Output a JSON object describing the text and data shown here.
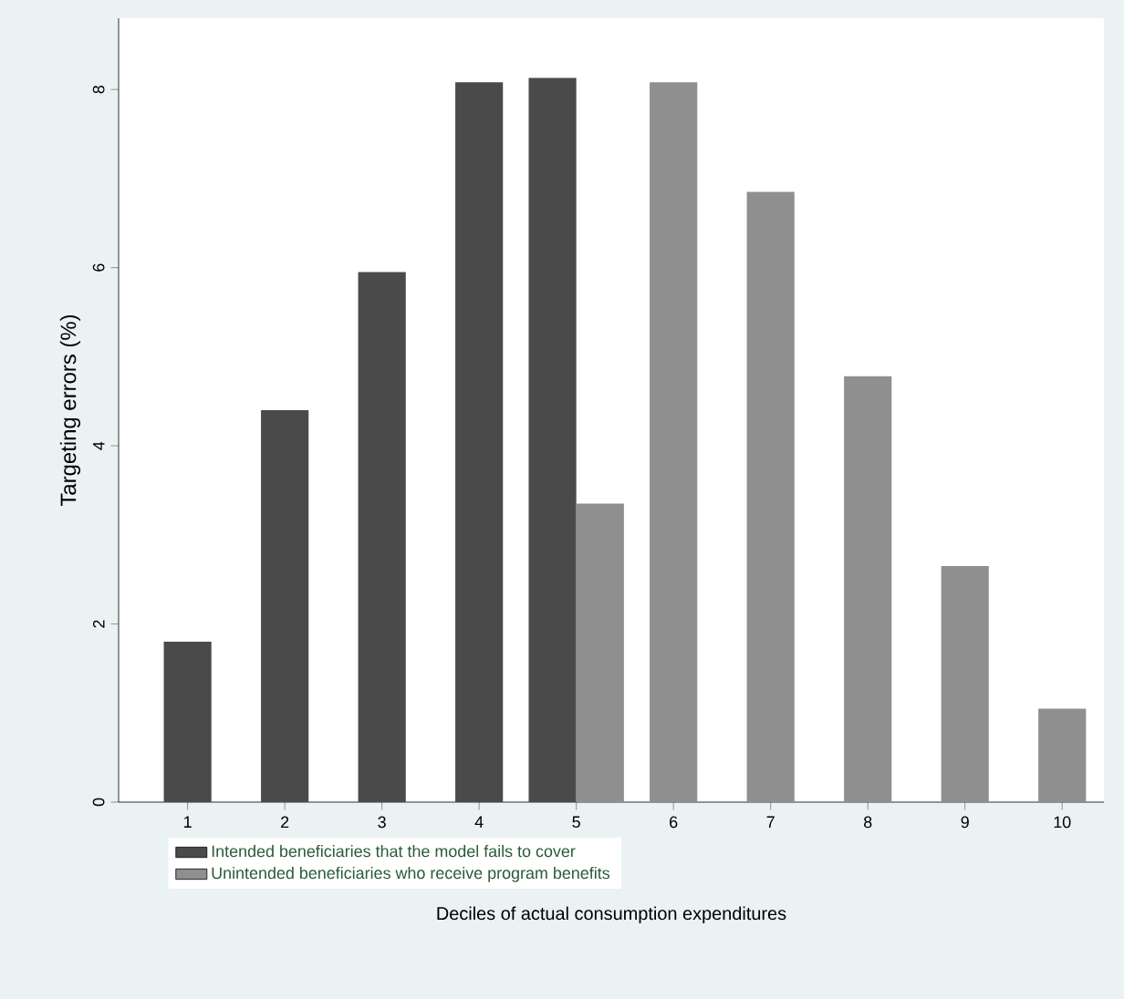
{
  "chart_data": {
    "type": "bar",
    "xlabel": "Deciles of actual consumption expenditures",
    "ylabel": "Targeting errors (%)",
    "categories": [
      "1",
      "2",
      "3",
      "4",
      "5",
      "6",
      "7",
      "8",
      "9",
      "10"
    ],
    "series": [
      {
        "name": "Intended beneficiaries that the model fails to cover",
        "color": "#4a4a4a",
        "values": [
          1.8,
          4.4,
          5.95,
          8.08,
          8.13,
          null,
          null,
          null,
          null,
          null
        ]
      },
      {
        "name": "Unintended beneficiaries who receive program benefits",
        "color": "#8f8f8f",
        "values": [
          null,
          null,
          null,
          null,
          3.35,
          8.08,
          6.85,
          4.78,
          2.65,
          1.05
        ]
      }
    ],
    "ylim": [
      0,
      8.8
    ],
    "yticks": [
      0,
      2,
      4,
      6,
      8
    ],
    "legend": "bottom"
  }
}
